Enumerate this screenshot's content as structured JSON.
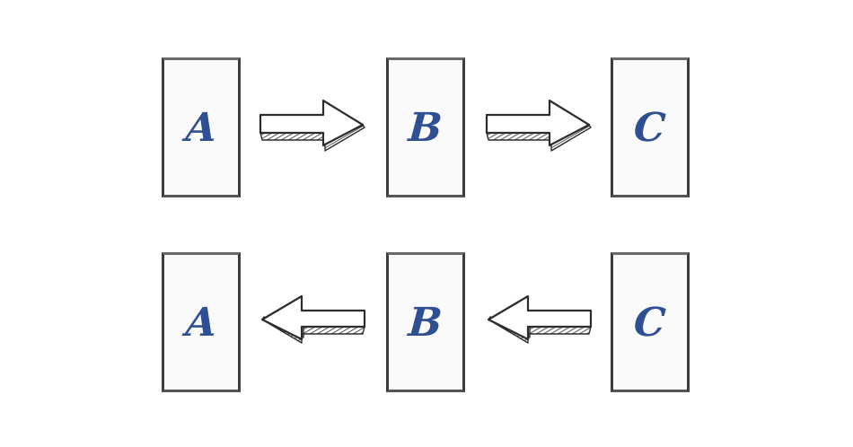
{
  "rows": [
    {
      "direction": "right",
      "boxes": [
        {
          "label": "A"
        },
        {
          "label": "B"
        },
        {
          "label": "C"
        }
      ]
    },
    {
      "direction": "left",
      "boxes": [
        {
          "label": "A"
        },
        {
          "label": "B"
        },
        {
          "label": "C"
        }
      ]
    }
  ],
  "colors": {
    "label": "#2f4f93",
    "outline": "#3d3d3d",
    "box_fill": "#fafafa"
  }
}
